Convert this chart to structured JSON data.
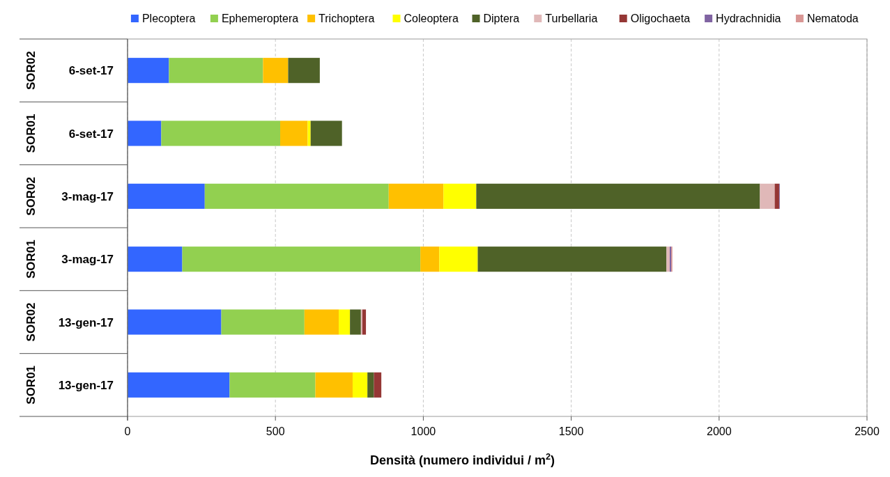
{
  "chart_data": {
    "type": "bar",
    "orientation": "horizontal",
    "stacked": true,
    "xlabel": "Densità (numero individui / m$^{2}$)",
    "categories": [
      "6-set-17",
      "6-set-17",
      "3-mag-17",
      "3-mag-17",
      "13-gen-17",
      "13-gen-17"
    ],
    "annotations": [
      "SOR02",
      "SOR01",
      "SOR02",
      "SOR01",
      "SOR02",
      "SOR01"
    ],
    "xlim": [
      0,
      2500
    ],
    "xticks": [
      0,
      500,
      1000,
      1500,
      2000,
      2500
    ],
    "grid": "x",
    "legend": "top",
    "series": [
      {
        "name": "Plecoptera",
        "color": "#3366ff",
        "values": [
          140,
          114,
          261,
          185,
          317,
          345
        ]
      },
      {
        "name": "Ephemeroptera",
        "color": "#92d050",
        "values": [
          318,
          402,
          622,
          805,
          281,
          290
        ]
      },
      {
        "name": "Trichoptera",
        "color": "#ffc000",
        "values": [
          85,
          93,
          185,
          64,
          116,
          126
        ]
      },
      {
        "name": "Coleoptera",
        "color": "#ffff00",
        "values": [
          0,
          10,
          111,
          130,
          38,
          50
        ]
      },
      {
        "name": "Diptera",
        "color": "#4f6228",
        "values": [
          107,
          106,
          959,
          638,
          37,
          22
        ]
      },
      {
        "name": "Turbellaria",
        "color": "#e0b8b8",
        "values": [
          0,
          0,
          50,
          11,
          5,
          0
        ]
      },
      {
        "name": "Oligochaeta",
        "color": "#953735",
        "values": [
          0,
          0,
          15,
          0,
          12,
          25
        ]
      },
      {
        "name": "Hydrachnidia",
        "color": "#8064a2",
        "values": [
          0,
          0,
          2,
          5,
          0,
          0
        ]
      },
      {
        "name": "Nematoda",
        "color": "#d99694",
        "values": [
          0,
          0,
          0,
          4,
          0,
          0
        ]
      }
    ]
  }
}
